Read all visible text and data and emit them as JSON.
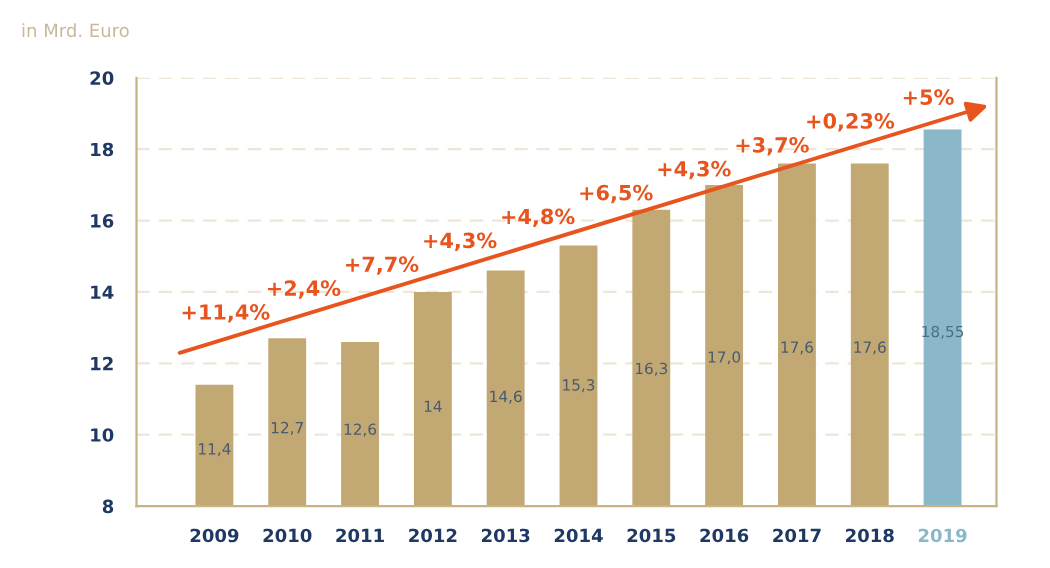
{
  "chart_data": {
    "type": "bar",
    "ylabel": "in Mrd. Euro",
    "categories": [
      "2009",
      "2010",
      "2011",
      "2012",
      "2013",
      "2014",
      "2015",
      "2016",
      "2017",
      "2018",
      "2019"
    ],
    "values": [
      11.4,
      12.7,
      12.6,
      14,
      14.6,
      15.3,
      16.3,
      17.0,
      17.6,
      17.6,
      18.55
    ],
    "colors": [
      "#c2a873",
      "#c2a873",
      "#c2a873",
      "#c2a873",
      "#c2a873",
      "#c2a873",
      "#c2a873",
      "#c2a873",
      "#c2a873",
      "#c2a873",
      "#8bb8c8"
    ],
    "value_labels": [
      "11,4",
      "12,7",
      "12,6",
      "14",
      "14,6",
      "15,3",
      "16,3",
      "17,0",
      "17,6",
      "17,6",
      "18,55"
    ],
    "annotations": [
      "+11,4%",
      "+2,4%",
      "+7,7%",
      "+4,3%",
      "+4,8%",
      "+6,5%",
      "+4,3%",
      "+3,7%",
      "+0,23%",
      "+5%"
    ],
    "ylim": [
      8,
      20
    ],
    "yticks": [
      8,
      10,
      12,
      14,
      16,
      18,
      20
    ],
    "grid": "y"
  }
}
